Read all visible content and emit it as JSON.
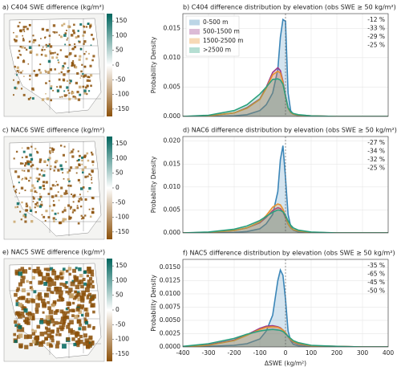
{
  "chart_data": [
    {
      "type": "map",
      "title": "a) C404 SWE difference (kg/m²)",
      "clim": [
        -175,
        175
      ],
      "cticks": [
        150,
        100,
        50,
        0,
        -50,
        -100,
        -150
      ],
      "cmap": [
        "#8c510a",
        "#ffffff",
        "#01665e"
      ]
    },
    {
      "type": "line",
      "title": "b) C404 difference distribution by elevation (obs SWE  ≥ 50 kg/m²)",
      "ylabel": "Probability Density",
      "legend": "upper left",
      "x": [
        -400,
        -300,
        -200,
        -150,
        -100,
        -75,
        -50,
        -30,
        -20,
        -10,
        0,
        10,
        20,
        30,
        50,
        100,
        200,
        300,
        400
      ],
      "xlim": [
        -400,
        400
      ],
      "ylim": [
        0,
        0.0175
      ],
      "yticks": [
        {
          "value": 0,
          "label": "0.000"
        },
        {
          "value": 0.005,
          "label": "0.005"
        },
        {
          "value": 0.01,
          "label": "0.010"
        },
        {
          "value": 0.015,
          "label": "0.015"
        }
      ],
      "series": [
        {
          "name": "0-500 m",
          "color": "#3b86b8",
          "values": [
            0,
            0,
            0.0001,
            0.0003,
            0.001,
            0.002,
            0.004,
            0.008,
            0.0135,
            0.0165,
            0.0162,
            0.004,
            0.001,
            0.0004,
            0.0001,
            0,
            0,
            0,
            0
          ]
        },
        {
          "name": "500-1500 m",
          "color": "#9b3b8a",
          "values": [
            0,
            0.0001,
            0.0006,
            0.0015,
            0.003,
            0.005,
            0.0075,
            0.0083,
            0.0078,
            0.006,
            0.0035,
            0.0015,
            0.0007,
            0.0004,
            0.0002,
            0.0001,
            0,
            0,
            0
          ]
        },
        {
          "name": "1500-2500 m",
          "color": "#e8922e",
          "values": [
            0,
            0.0001,
            0.0006,
            0.0014,
            0.0029,
            0.0048,
            0.0071,
            0.0077,
            0.0074,
            0.0058,
            0.0034,
            0.0014,
            0.0007,
            0.0004,
            0.0002,
            0.0001,
            0,
            0,
            0
          ]
        },
        {
          "name": ">2500 m",
          "color": "#2ba07e",
          "values": [
            0,
            0.0002,
            0.001,
            0.002,
            0.0038,
            0.005,
            0.0063,
            0.0064,
            0.0062,
            0.0055,
            0.0035,
            0.0015,
            0.0008,
            0.0005,
            0.0003,
            0.0001,
            0,
            0,
            0
          ]
        }
      ],
      "annotations": [
        "-12 %",
        "-33 %",
        "-29 %",
        "-25 %"
      ]
    },
    {
      "type": "map",
      "title": "c) NAC6 SWE difference (kg/m²)",
      "clim": [
        -175,
        175
      ],
      "cticks": [
        150,
        100,
        50,
        0,
        -50,
        -100,
        -150
      ],
      "cmap": [
        "#8c510a",
        "#ffffff",
        "#01665e"
      ]
    },
    {
      "type": "line",
      "title": "d) NAC6 difference distribution by elevation (obs SWE  ≥ 50 kg/m²)",
      "ylabel": "Probability Density",
      "x": [
        -400,
        -300,
        -200,
        -150,
        -100,
        -75,
        -50,
        -30,
        -20,
        -10,
        0,
        10,
        20,
        30,
        50,
        100,
        200,
        300,
        400
      ],
      "xlim": [
        -400,
        400
      ],
      "ylim": [
        0,
        0.021
      ],
      "yticks": [
        {
          "value": 0,
          "label": "0.000"
        },
        {
          "value": 0.005,
          "label": "0.005"
        },
        {
          "value": 0.01,
          "label": "0.010"
        },
        {
          "value": 0.015,
          "label": "0.015"
        },
        {
          "value": 0.02,
          "label": "0.020"
        }
      ],
      "series": [
        {
          "name": "0-500 m",
          "color": "#3b86b8",
          "values": [
            0,
            0,
            0.0001,
            0.0003,
            0.0009,
            0.002,
            0.004,
            0.009,
            0.016,
            0.019,
            0.012,
            0.004,
            0.0015,
            0.0006,
            0.0002,
            0,
            0,
            0,
            0
          ]
        },
        {
          "name": "500-1500 m",
          "color": "#9b3b8a",
          "values": [
            0,
            0.0001,
            0.0005,
            0.0011,
            0.0022,
            0.0034,
            0.0049,
            0.0055,
            0.0053,
            0.0046,
            0.0033,
            0.0019,
            0.0011,
            0.0007,
            0.0004,
            0.0001,
            0,
            0,
            0
          ]
        },
        {
          "name": "1500-2500 m",
          "color": "#e8922e",
          "values": [
            0,
            0.0001,
            0.0005,
            0.0011,
            0.0024,
            0.0038,
            0.0056,
            0.0063,
            0.0061,
            0.0052,
            0.0036,
            0.002,
            0.0011,
            0.0007,
            0.0004,
            0.0001,
            0,
            0,
            0
          ]
        },
        {
          "name": ">2500 m",
          "color": "#2ba07e",
          "values": [
            0,
            0.0002,
            0.0008,
            0.0015,
            0.0027,
            0.0036,
            0.0045,
            0.005,
            0.0049,
            0.0046,
            0.0038,
            0.0026,
            0.0017,
            0.0011,
            0.0006,
            0.0002,
            0,
            0,
            0
          ]
        }
      ],
      "annotations": [
        "-27 %",
        "-34 %",
        "-32 %",
        "-25 %"
      ]
    },
    {
      "type": "map",
      "title": "e) NAC5 SWE difference (kg/m²)",
      "clim": [
        -175,
        175
      ],
      "cticks": [
        150,
        100,
        50,
        0,
        -50,
        -100,
        -150
      ],
      "cmap": [
        "#8c510a",
        "#ffffff",
        "#01665e"
      ]
    },
    {
      "type": "line",
      "title": "f) NAC5 difference distribution by elevation (obs SWE  ≥ 50 kg/m²)",
      "ylabel": "Probability Density",
      "xlabel": "ΔSWE (kg/m²)",
      "x": [
        -400,
        -300,
        -200,
        -150,
        -100,
        -75,
        -50,
        -30,
        -20,
        -10,
        0,
        10,
        20,
        30,
        50,
        100,
        200,
        300,
        400
      ],
      "xlim": [
        -400,
        400
      ],
      "xticks": [
        -400,
        -300,
        -200,
        -100,
        0,
        100,
        200,
        300,
        400
      ],
      "ylim": [
        0,
        0.0165
      ],
      "yticks": [
        {
          "value": 0,
          "label": "0.0000"
        },
        {
          "value": 0.0025,
          "label": "0.0025"
        },
        {
          "value": 0.005,
          "label": "0.0050"
        },
        {
          "value": 0.0075,
          "label": "0.0075"
        },
        {
          "value": 0.01,
          "label": "0.0100"
        },
        {
          "value": 0.0125,
          "label": "0.0125"
        },
        {
          "value": 0.015,
          "label": "0.0150"
        }
      ],
      "series": [
        {
          "name": "0-500 m",
          "color": "#3b86b8",
          "values": [
            0,
            0.0001,
            0.0003,
            0.0006,
            0.0015,
            0.003,
            0.006,
            0.0125,
            0.0145,
            0.0135,
            0.009,
            0.003,
            0.0012,
            0.0005,
            0.0002,
            0,
            0,
            0,
            0
          ]
        },
        {
          "name": "500-1500 m",
          "color": "#9b3b8a",
          "values": [
            0,
            0.0004,
            0.0013,
            0.0023,
            0.0035,
            0.0039,
            0.004,
            0.0038,
            0.0036,
            0.0032,
            0.0026,
            0.0019,
            0.0013,
            0.0009,
            0.0005,
            0.0002,
            0.0001,
            0,
            0
          ]
        },
        {
          "name": "1500-2500 m",
          "color": "#e8922e",
          "values": [
            0,
            0.0003,
            0.0012,
            0.0022,
            0.0033,
            0.0037,
            0.0038,
            0.0037,
            0.0035,
            0.0032,
            0.0027,
            0.002,
            0.0014,
            0.001,
            0.0006,
            0.0002,
            0.0001,
            0,
            0
          ]
        },
        {
          "name": ">2500 m",
          "color": "#2ba07e",
          "values": [
            0.0001,
            0.0006,
            0.0016,
            0.0024,
            0.003,
            0.0032,
            0.0033,
            0.0032,
            0.0031,
            0.0029,
            0.0025,
            0.002,
            0.0016,
            0.0012,
            0.0008,
            0.0003,
            0.0001,
            0,
            0
          ]
        }
      ],
      "annotations": [
        "-35 %",
        "-65 %",
        "-45 %",
        "-50 %"
      ]
    }
  ]
}
